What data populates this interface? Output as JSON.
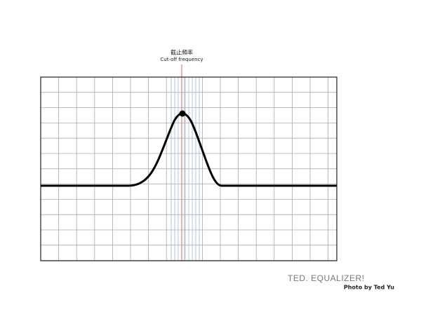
{
  "annotation": {
    "title": "截止頻率",
    "subtitle": "Cut-off frequency"
  },
  "footer": {
    "brand": "TED. EQUALIZER!",
    "credit": "Photo by Ted Yu"
  }
}
